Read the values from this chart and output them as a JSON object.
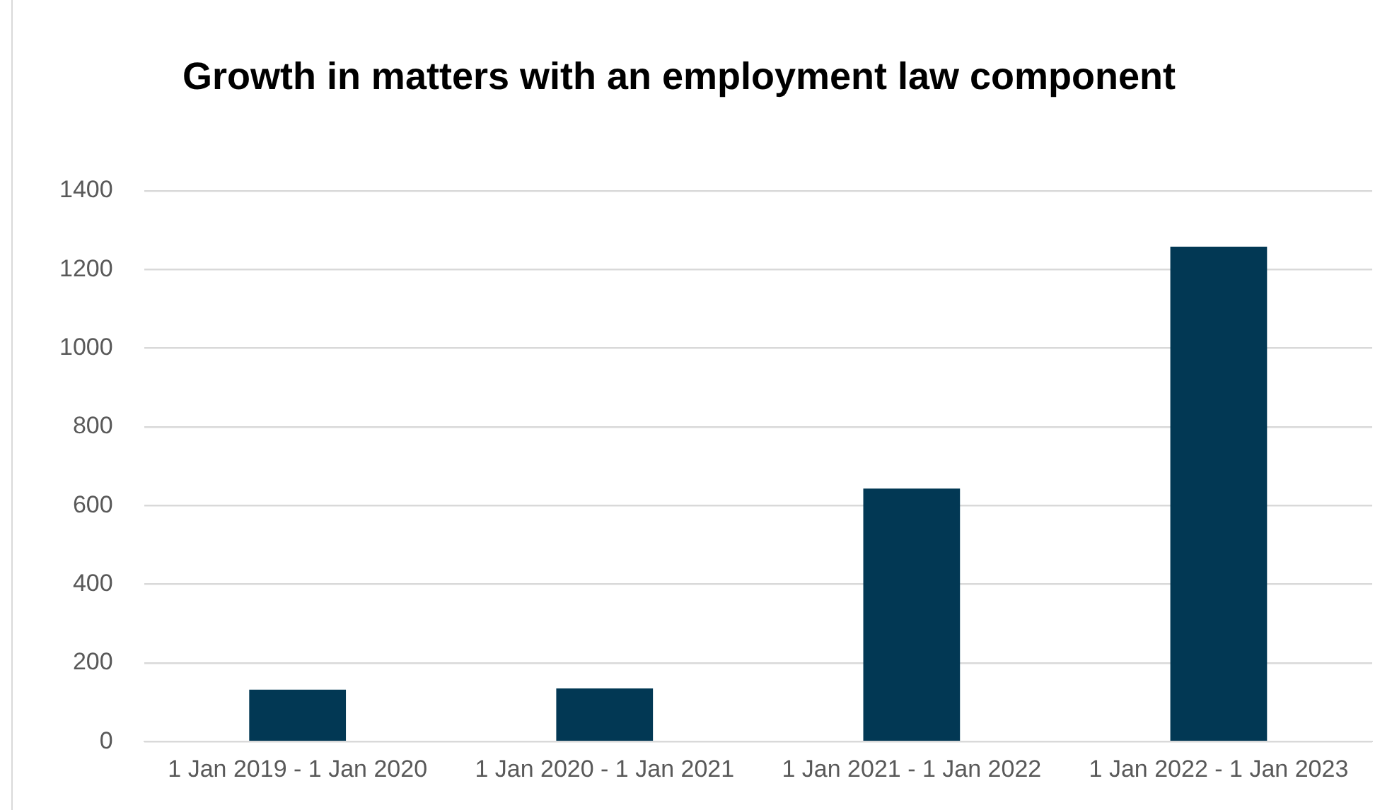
{
  "chart_data": {
    "type": "bar",
    "title": "Growth in matters with an employment law component",
    "categories": [
      "1 Jan 2019 - 1 Jan 2020",
      "1 Jan 2020 - 1 Jan 2021",
      "1 Jan 2021 - 1 Jan 2022",
      "1 Jan 2022 - 1 Jan 2023"
    ],
    "values": [
      132,
      135,
      643,
      1258
    ],
    "color": "#023854",
    "ylim": [
      0,
      1400
    ],
    "yticks": [
      0,
      200,
      400,
      600,
      800,
      1000,
      1200,
      1400
    ],
    "grid": "y"
  }
}
